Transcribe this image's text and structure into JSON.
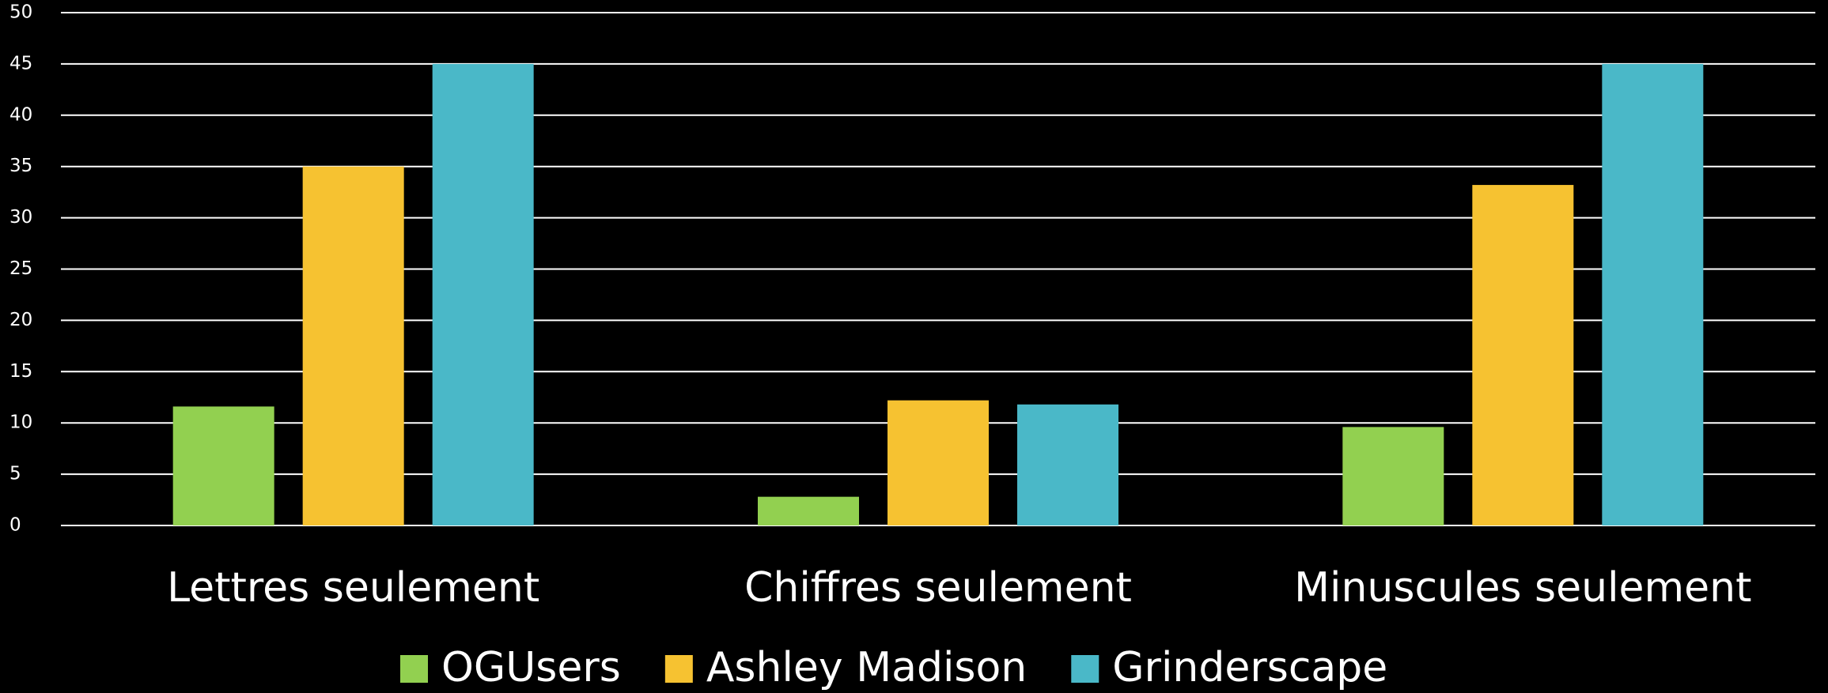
{
  "chart_data": {
    "type": "bar",
    "categories": [
      "Lettres seulement",
      "Chiffres seulement",
      "Minuscules seulement"
    ],
    "series": [
      {
        "name": "OGUsers",
        "color": "#92d050",
        "values": [
          11.6,
          2.8,
          9.6
        ]
      },
      {
        "name": "Ashley Madison",
        "color": "#f6c231",
        "values": [
          35,
          12.2,
          33.2
        ]
      },
      {
        "name": "Grinderscape",
        "color": "#4ab8c8",
        "values": [
          45,
          11.8,
          45
        ]
      }
    ],
    "ylim": [
      0,
      50
    ],
    "yticks": [
      0,
      5,
      10,
      15,
      20,
      25,
      30,
      35,
      40,
      45,
      50
    ],
    "grid": true,
    "legend": "bottom"
  }
}
